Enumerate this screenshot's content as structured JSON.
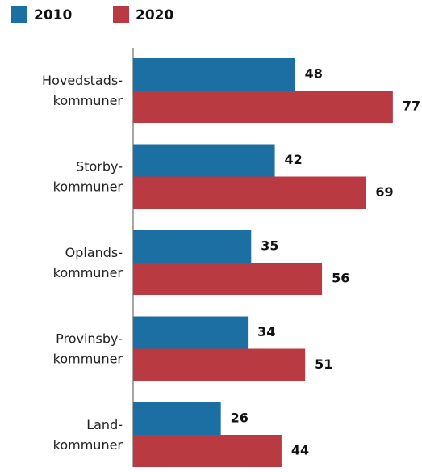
{
  "chart_data": {
    "type": "bar",
    "orientation": "horizontal",
    "categories": [
      [
        "Hovedstads-",
        "kommuner"
      ],
      [
        "Storby-",
        "kommuner"
      ],
      [
        "Oplands-",
        "kommuner"
      ],
      [
        "Provinsby-",
        "kommuner"
      ],
      [
        "Land-",
        "kommuner"
      ]
    ],
    "series": [
      {
        "name": "2010",
        "color": "#1b6fa3",
        "values": [
          48,
          42,
          35,
          34,
          26
        ]
      },
      {
        "name": "2020",
        "color": "#b93a41",
        "values": [
          77,
          69,
          56,
          51,
          44
        ]
      }
    ],
    "legend": "top-left"
  }
}
